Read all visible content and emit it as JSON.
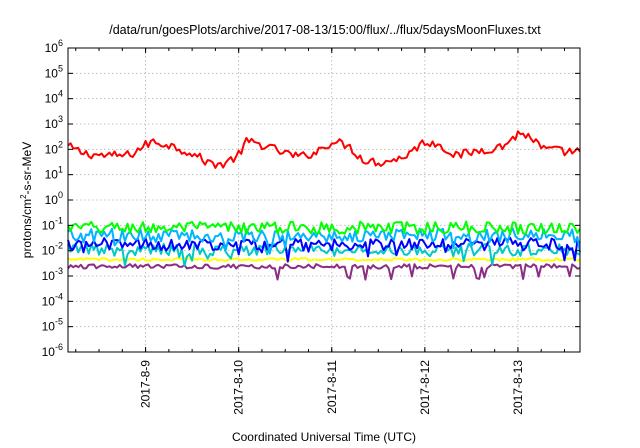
{
  "chart_data": {
    "type": "line",
    "title": "/data/run/goesPlots/archive/2017-08-13/15:00/flux/../flux/5daysMoonFluxes.txt",
    "xlabel": "Coordinated Universal Time (UTC)",
    "ylabel": {
      "prefix": "protons/cm",
      "sup": "2",
      "suffix": "-s-sr-MeV"
    },
    "y_scale": "log",
    "ylim": [
      1e-06,
      1000000.0
    ],
    "y_ticks": [
      {
        "value": 1e-06,
        "base": "10",
        "exp": "-6"
      },
      {
        "value": 1e-05,
        "base": "10",
        "exp": "-5"
      },
      {
        "value": 0.0001,
        "base": "10",
        "exp": "-4"
      },
      {
        "value": 0.001,
        "base": "10",
        "exp": "-3"
      },
      {
        "value": 0.01,
        "base": "10",
        "exp": "-2"
      },
      {
        "value": 0.1,
        "base": "10",
        "exp": "-1"
      },
      {
        "value": 1.0,
        "base": "10",
        "exp": "0"
      },
      {
        "value": 10.0,
        "base": "10",
        "exp": "1"
      },
      {
        "value": 100.0,
        "base": "10",
        "exp": "2"
      },
      {
        "value": 1000.0,
        "base": "10",
        "exp": "3"
      },
      {
        "value": 10000.0,
        "base": "10",
        "exp": "4"
      },
      {
        "value": 100000.0,
        "base": "10",
        "exp": "5"
      },
      {
        "value": 1000000.0,
        "base": "10",
        "exp": "6"
      }
    ],
    "xlim": [
      "2017-08-08T04:00",
      "2017-08-13T16:00"
    ],
    "x_ticks": [
      {
        "value": "2017-08-09T00:00",
        "label": "2017-8-9"
      },
      {
        "value": "2017-08-10T00:00",
        "label": "2017-8-10"
      },
      {
        "value": "2017-08-11T00:00",
        "label": "2017-8-11"
      },
      {
        "value": "2017-08-12T00:00",
        "label": "2017-8-12"
      },
      {
        "value": "2017-08-13T00:00",
        "label": "2017-8-13"
      }
    ],
    "grid": true,
    "series": [
      {
        "color": "#ff0000",
        "noise": 0.35,
        "points": [
          [
            "2017-08-08T04:00",
            130
          ],
          [
            "2017-08-08T08:00",
            70
          ],
          [
            "2017-08-08T14:00",
            55
          ],
          [
            "2017-08-08T20:00",
            60
          ],
          [
            "2017-08-09T00:00",
            150
          ],
          [
            "2017-08-09T02:00",
            200
          ],
          [
            "2017-08-09T06:00",
            150
          ],
          [
            "2017-08-09T12:00",
            70
          ],
          [
            "2017-08-09T16:00",
            30
          ],
          [
            "2017-08-09T20:00",
            25
          ],
          [
            "2017-08-10T00:00",
            60
          ],
          [
            "2017-08-10T02:00",
            200
          ],
          [
            "2017-08-10T06:00",
            150
          ],
          [
            "2017-08-10T12:00",
            70
          ],
          [
            "2017-08-10T16:00",
            50
          ],
          [
            "2017-08-10T20:00",
            80
          ],
          [
            "2017-08-11T00:00",
            200
          ],
          [
            "2017-08-11T04:00",
            150
          ],
          [
            "2017-08-11T08:00",
            40
          ],
          [
            "2017-08-11T12:00",
            30
          ],
          [
            "2017-08-11T18:00",
            45
          ],
          [
            "2017-08-12T00:00",
            200
          ],
          [
            "2017-08-12T04:00",
            150
          ],
          [
            "2017-08-12T08:00",
            55
          ],
          [
            "2017-08-12T14:00",
            90
          ],
          [
            "2017-08-12T20:00",
            130
          ],
          [
            "2017-08-13T00:00",
            400
          ],
          [
            "2017-08-13T03:00",
            350
          ],
          [
            "2017-08-13T06:00",
            110
          ],
          [
            "2017-08-13T12:00",
            80
          ],
          [
            "2017-08-13T16:00",
            85
          ]
        ]
      },
      {
        "color": "#00ff00",
        "base": 0.08,
        "noise": 0.5,
        "dips": false
      },
      {
        "color": "#00b4ff",
        "base": 0.04,
        "noise": 0.55,
        "dips": true
      },
      {
        "color": "#0000ff",
        "base": 0.018,
        "noise": 0.5,
        "dips": true
      },
      {
        "color": "#00c8c8",
        "base": 0.011,
        "noise": 0.5,
        "dips": true
      },
      {
        "color": "#ffff00",
        "base": 0.0045,
        "noise": 0.12,
        "dips": false
      },
      {
        "color": "#8b2d82",
        "base": 0.0024,
        "noise": 0.18,
        "dips": true
      }
    ]
  }
}
